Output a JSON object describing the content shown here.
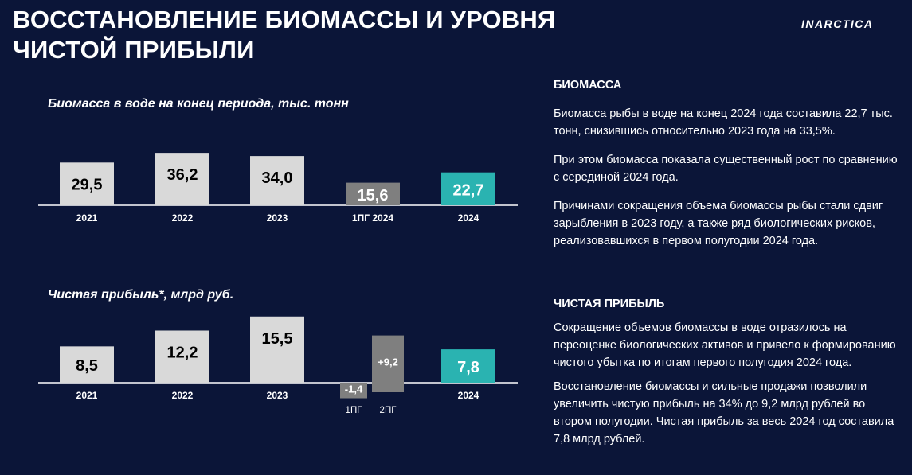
{
  "header": {
    "title": "ВОССТАНОВЛЕНИЕ БИОМАССЫ И УРОВНЯ ЧИСТОЙ ПРИБЫЛИ",
    "logo_text": "INARCTICA"
  },
  "chart_data": [
    {
      "type": "bar",
      "title": "Биомасса в воде на конец периода, тыс. тонн",
      "categories": [
        "2021",
        "2022",
        "2023",
        "1ПГ 2024",
        "2024"
      ],
      "values": [
        29.5,
        36.2,
        34.0,
        15.6,
        22.7
      ],
      "labels": [
        "29,5",
        "36,2",
        "34,0",
        "15,6",
        "22,7"
      ],
      "colors": [
        "#d9d9d9",
        "#d9d9d9",
        "#d9d9d9",
        "#7f7f7f",
        "#2ab3b1"
      ],
      "label_colors": [
        "#000000",
        "#000000",
        "#000000",
        "#ffffff",
        "#ffffff"
      ]
    },
    {
      "type": "bar",
      "title": "Чистая прибыль*, млрд руб.",
      "categories": [
        "2021",
        "2022",
        "2023",
        "",
        "2024"
      ],
      "values": [
        8.5,
        12.2,
        15.5,
        0,
        7.8
      ],
      "labels": [
        "8,5",
        "12,2",
        "15,5",
        "",
        "7,8"
      ],
      "colors": [
        "#d9d9d9",
        "#d9d9d9",
        "#d9d9d9",
        "#7f7f7f",
        "#2ab3b1"
      ],
      "label_colors": [
        "#000000",
        "#000000",
        "#000000",
        "#ffffff",
        "#ffffff"
      ],
      "split": {
        "categories": [
          "1ПГ",
          "2ПГ"
        ],
        "values": [
          -1.4,
          9.2
        ],
        "labels": [
          "-1,4",
          "+9,2"
        ],
        "colors": [
          "#7f7f7f",
          "#7f7f7f"
        ]
      }
    }
  ],
  "right_panel": {
    "biomass_heading": "БИОМАССА",
    "biomass_p1": "Биомасса рыбы в воде на конец 2024 года составила 22,7 тыс. тонн, снизившись относительно 2023 года на 33,5%.",
    "biomass_p2": "При этом биомасса показала существенный рост по сравнению с серединой 2024 года.",
    "biomass_p3": "Причинами сокращения объема биомассы рыбы стали сдвиг зарыбления в 2023 году, а также ряд биологических рисков, реализовавшихся в первом полугодии 2024 года.",
    "profit_heading": "ЧИСТАЯ ПРИБЫЛЬ",
    "profit_p1": "Сокращение объемов биомассы в воде отразилось на переоценке биологических активов и привело к формированию чистого убытка по итогам первого полугодия 2024 года.",
    "profit_p2": "Восстановление биомассы и сильные продажи позволили увеличить чистую прибыль на 34% до 9,2 млрд рублей во втором полугодии. Чистая прибыль за весь 2024 год составила 7,8 млрд рублей."
  }
}
